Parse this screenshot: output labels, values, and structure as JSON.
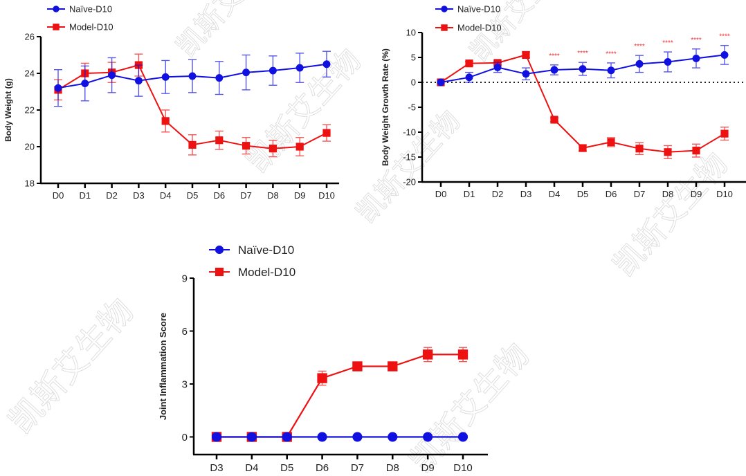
{
  "watermark": "凯斯艾生物",
  "colors": {
    "naive": "#1010e0",
    "model": "#ee1111",
    "stars": "#ee3333",
    "axis": "#000000"
  },
  "chart_data": [
    {
      "type": "line",
      "title": "",
      "xlabel": "",
      "ylabel": "Body Weight (g)",
      "ylim": [
        18,
        26
      ],
      "yticks": [
        18,
        20,
        22,
        24,
        26
      ],
      "categories": [
        "D0",
        "D1",
        "D2",
        "D3",
        "D4",
        "D5",
        "D6",
        "D7",
        "D8",
        "D9",
        "D10"
      ],
      "legend": {
        "position": "top-left",
        "entries": [
          "Naïve-D10",
          "Model-D10"
        ]
      },
      "grid": false,
      "series": [
        {
          "name": "Naïve-D10",
          "marker": "circle",
          "values": [
            23.2,
            23.45,
            23.9,
            23.6,
            23.8,
            23.85,
            23.75,
            24.05,
            24.15,
            24.3,
            24.5
          ],
          "errors": [
            1.0,
            0.95,
            0.95,
            0.85,
            0.9,
            0.9,
            0.9,
            0.95,
            0.8,
            0.8,
            0.7
          ]
        },
        {
          "name": "Model-D10",
          "marker": "square",
          "values": [
            23.1,
            24.0,
            24.05,
            24.45,
            21.4,
            20.1,
            20.35,
            20.05,
            19.9,
            20.0,
            20.75
          ],
          "errors": [
            0.55,
            0.55,
            0.55,
            0.6,
            0.6,
            0.55,
            0.5,
            0.45,
            0.45,
            0.5,
            0.45
          ]
        }
      ]
    },
    {
      "type": "line",
      "title": "",
      "xlabel": "",
      "ylabel": "Body Weight Growth Rate (%)",
      "ylim": [
        -20,
        10
      ],
      "yticks": [
        -20,
        -15,
        -10,
        -5,
        0,
        5,
        10
      ],
      "reference_line": 0,
      "categories": [
        "D0",
        "D1",
        "D2",
        "D3",
        "D4",
        "D5",
        "D6",
        "D7",
        "D8",
        "D9",
        "D10"
      ],
      "legend": {
        "position": "top-left",
        "entries": [
          "Naïve-D10",
          "Model-D10"
        ]
      },
      "grid": false,
      "annotations": [
        {
          "category": "D4",
          "text": "****"
        },
        {
          "category": "D5",
          "text": "****"
        },
        {
          "category": "D6",
          "text": "****"
        },
        {
          "category": "D7",
          "text": "****"
        },
        {
          "category": "D8",
          "text": "****"
        },
        {
          "category": "D9",
          "text": "****"
        },
        {
          "category": "D10",
          "text": "****"
        }
      ],
      "series": [
        {
          "name": "Naïve-D10",
          "marker": "circle",
          "values": [
            0,
            1.0,
            3.0,
            1.7,
            2.5,
            2.7,
            2.4,
            3.7,
            4.1,
            4.8,
            5.5
          ],
          "errors": [
            0,
            1.0,
            1.0,
            1.2,
            1.0,
            1.3,
            1.5,
            1.7,
            2.0,
            1.9,
            1.9
          ]
        },
        {
          "name": "Model-D10",
          "marker": "square",
          "values": [
            0,
            3.8,
            3.9,
            5.5,
            -7.5,
            -13.2,
            -12.0,
            -13.3,
            -14.0,
            -13.7,
            -10.3
          ],
          "errors": [
            0,
            0.4,
            0.4,
            0.6,
            0.4,
            0.6,
            0.9,
            1.2,
            1.3,
            1.3,
            1.3
          ]
        }
      ]
    },
    {
      "type": "line",
      "title": "",
      "xlabel": "",
      "ylabel": "Joint Inflammation Score",
      "ylim": [
        -1,
        9
      ],
      "yticks": [
        0,
        3,
        6,
        9
      ],
      "categories": [
        "D3",
        "D4",
        "D5",
        "D6",
        "D7",
        "D8",
        "D9",
        "D10"
      ],
      "legend": {
        "position": "top-left",
        "entries": [
          "Naïve-D10",
          "Model-D10"
        ]
      },
      "grid": false,
      "series": [
        {
          "name": "Naïve-D10",
          "marker": "circle",
          "values": [
            0,
            0,
            0,
            0,
            0,
            0,
            0,
            0
          ],
          "errors": [
            0,
            0,
            0,
            0,
            0,
            0,
            0,
            0
          ]
        },
        {
          "name": "Model-D10",
          "marker": "square",
          "values": [
            0,
            0,
            0,
            3.33,
            4.0,
            4.0,
            4.67,
            4.67
          ],
          "errors": [
            0,
            0,
            0,
            0.4,
            0,
            0,
            0.4,
            0.4
          ]
        }
      ]
    }
  ]
}
